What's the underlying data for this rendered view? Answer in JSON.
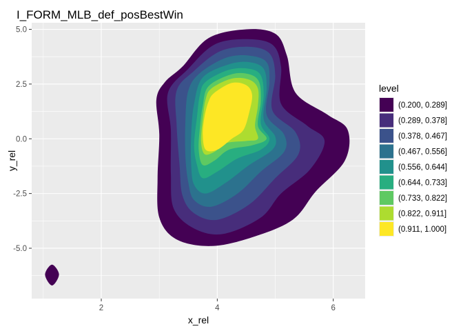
{
  "chart_data": {
    "type": "density-contour",
    "title": "I_FORM_MLB_def_posBestWin",
    "xlabel": "x_rel",
    "ylabel": "y_rel",
    "xlim": [
      0.8,
      6.55
    ],
    "ylim": [
      -7.3,
      5.3
    ],
    "x_ticks": [
      2,
      4,
      6
    ],
    "y_ticks": [
      5.0,
      2.5,
      0.0,
      -2.5,
      -5.0
    ],
    "x_tick_labels": [
      "2",
      "4",
      "6"
    ],
    "y_tick_labels": [
      "5.0",
      "2.5",
      "0.0",
      "-2.5",
      "-5.0"
    ],
    "grid": true,
    "legend": {
      "title": "level",
      "position": "right",
      "entries": [
        {
          "label": "(0.200, 0.289]",
          "color": "#440154"
        },
        {
          "label": "(0.289, 0.378]",
          "color": "#472d7b"
        },
        {
          "label": "(0.378, 0.467]",
          "color": "#3b528b"
        },
        {
          "label": "(0.467, 0.556]",
          "color": "#2c728e"
        },
        {
          "label": "(0.556, 0.644]",
          "color": "#21918c"
        },
        {
          "label": "(0.644, 0.733]",
          "color": "#28ae80"
        },
        {
          "label": "(0.733, 0.822]",
          "color": "#5ec962"
        },
        {
          "label": "(0.822, 0.911]",
          "color": "#addc30"
        },
        {
          "label": "(0.911, 1.000]",
          "color": "#fde725"
        }
      ]
    },
    "regions": [
      {
        "level": 0,
        "points": [
          [
            3.4,
            3.3
          ],
          [
            3.85,
            4.6
          ],
          [
            4.5,
            5.0
          ],
          [
            5.0,
            4.8
          ],
          [
            5.2,
            3.8
          ],
          [
            5.35,
            2.1
          ],
          [
            5.9,
            1.1
          ],
          [
            6.25,
            0.4
          ],
          [
            6.2,
            -1.0
          ],
          [
            5.7,
            -2.4
          ],
          [
            5.3,
            -3.7
          ],
          [
            4.6,
            -4.5
          ],
          [
            3.9,
            -4.9
          ],
          [
            3.3,
            -4.6
          ],
          [
            3.0,
            -3.6
          ],
          [
            2.97,
            -1.8
          ],
          [
            3.0,
            0.2
          ],
          [
            2.95,
            1.8
          ],
          [
            3.1,
            2.6
          ]
        ]
      },
      {
        "level": 0,
        "points": [
          [
            1.15,
            -5.75
          ],
          [
            1.27,
            -6.2
          ],
          [
            1.15,
            -6.7
          ],
          [
            1.03,
            -6.2
          ]
        ]
      },
      {
        "level": 1,
        "points": [
          [
            3.5,
            3.2
          ],
          [
            3.95,
            4.3
          ],
          [
            4.5,
            4.55
          ],
          [
            4.95,
            4.3
          ],
          [
            5.1,
            3.3
          ],
          [
            5.1,
            1.6
          ],
          [
            5.55,
            0.6
          ],
          [
            5.85,
            -0.1
          ],
          [
            5.6,
            -1.4
          ],
          [
            5.1,
            -2.5
          ],
          [
            4.75,
            -3.6
          ],
          [
            4.1,
            -4.35
          ],
          [
            3.6,
            -4.1
          ],
          [
            3.25,
            -3.2
          ],
          [
            3.2,
            -1.6
          ],
          [
            3.2,
            0.4
          ],
          [
            3.15,
            2.1
          ]
        ]
      },
      {
        "level": 2,
        "points": [
          [
            3.6,
            3.1
          ],
          [
            4.05,
            4.0
          ],
          [
            4.55,
            4.2
          ],
          [
            4.9,
            3.9
          ],
          [
            5.0,
            2.9
          ],
          [
            4.95,
            1.3
          ],
          [
            5.35,
            0.3
          ],
          [
            5.4,
            -0.7
          ],
          [
            5.0,
            -1.8
          ],
          [
            4.55,
            -3.0
          ],
          [
            4.0,
            -3.7
          ],
          [
            3.6,
            -3.4
          ],
          [
            3.4,
            -2.6
          ],
          [
            3.35,
            -1.2
          ],
          [
            3.3,
            0.6
          ],
          [
            3.3,
            2.2
          ]
        ]
      },
      {
        "level": 3,
        "points": [
          [
            3.7,
            3.0
          ],
          [
            4.15,
            3.7
          ],
          [
            4.55,
            3.8
          ],
          [
            4.85,
            3.5
          ],
          [
            4.9,
            2.6
          ],
          [
            4.85,
            1.1
          ],
          [
            5.15,
            0.2
          ],
          [
            5.15,
            -0.6
          ],
          [
            4.75,
            -1.5
          ],
          [
            4.35,
            -2.5
          ],
          [
            3.9,
            -3.1
          ],
          [
            3.6,
            -2.8
          ],
          [
            3.5,
            -2.0
          ],
          [
            3.45,
            -0.8
          ],
          [
            3.45,
            0.8
          ],
          [
            3.5,
            2.2
          ]
        ]
      },
      {
        "level": 4,
        "points": [
          [
            3.75,
            2.8
          ],
          [
            4.2,
            3.4
          ],
          [
            4.55,
            3.5
          ],
          [
            4.8,
            3.2
          ],
          [
            4.85,
            2.3
          ],
          [
            4.8,
            0.9
          ],
          [
            5.0,
            0.1
          ],
          [
            4.95,
            -0.5
          ],
          [
            4.55,
            -1.2
          ],
          [
            4.15,
            -2.0
          ],
          [
            3.8,
            -2.5
          ],
          [
            3.6,
            -2.1
          ],
          [
            3.55,
            -1.2
          ],
          [
            3.55,
            0.2
          ],
          [
            3.6,
            1.6
          ]
        ]
      },
      {
        "level": 5,
        "points": [
          [
            3.8,
            2.6
          ],
          [
            4.2,
            3.15
          ],
          [
            4.55,
            3.2
          ],
          [
            4.75,
            2.9
          ],
          [
            4.8,
            2.0
          ],
          [
            4.75,
            0.7
          ],
          [
            4.9,
            0.0
          ],
          [
            4.75,
            -0.5
          ],
          [
            4.35,
            -0.9
          ],
          [
            4.0,
            -1.5
          ],
          [
            3.75,
            -1.8
          ],
          [
            3.65,
            -1.2
          ],
          [
            3.6,
            -0.3
          ],
          [
            3.65,
            1.0
          ],
          [
            3.7,
            2.0
          ]
        ]
      },
      {
        "level": 6,
        "points": [
          [
            3.85,
            2.4
          ],
          [
            4.25,
            2.95
          ],
          [
            4.55,
            2.95
          ],
          [
            4.72,
            2.6
          ],
          [
            4.75,
            1.7
          ],
          [
            4.7,
            0.6
          ],
          [
            4.85,
            0.0
          ],
          [
            4.6,
            -0.3
          ],
          [
            4.2,
            -0.5
          ],
          [
            3.95,
            -1.0
          ],
          [
            3.75,
            -1.2
          ],
          [
            3.68,
            -0.5
          ],
          [
            3.7,
            0.5
          ],
          [
            3.75,
            1.5
          ]
        ]
      },
      {
        "level": 7,
        "points": [
          [
            3.9,
            2.3
          ],
          [
            4.25,
            2.75
          ],
          [
            4.55,
            2.7
          ],
          [
            4.7,
            2.3
          ],
          [
            4.7,
            1.5
          ],
          [
            4.65,
            0.6
          ],
          [
            4.7,
            0.0
          ],
          [
            4.5,
            -0.1
          ],
          [
            4.15,
            -0.2
          ],
          [
            3.95,
            -0.6
          ],
          [
            3.78,
            -0.7
          ],
          [
            3.72,
            -0.1
          ],
          [
            3.75,
            0.9
          ],
          [
            3.8,
            1.8
          ]
        ]
      },
      {
        "level": 8,
        "points": [
          [
            3.95,
            2.1
          ],
          [
            4.25,
            2.55
          ],
          [
            4.5,
            2.45
          ],
          [
            4.6,
            2.0
          ],
          [
            4.55,
            1.2
          ],
          [
            4.45,
            0.4
          ],
          [
            4.25,
            0.0
          ],
          [
            4.0,
            -0.5
          ],
          [
            3.8,
            -0.5
          ],
          [
            3.75,
            0.2
          ],
          [
            3.78,
            1.0
          ],
          [
            3.85,
            1.7
          ]
        ]
      }
    ]
  }
}
